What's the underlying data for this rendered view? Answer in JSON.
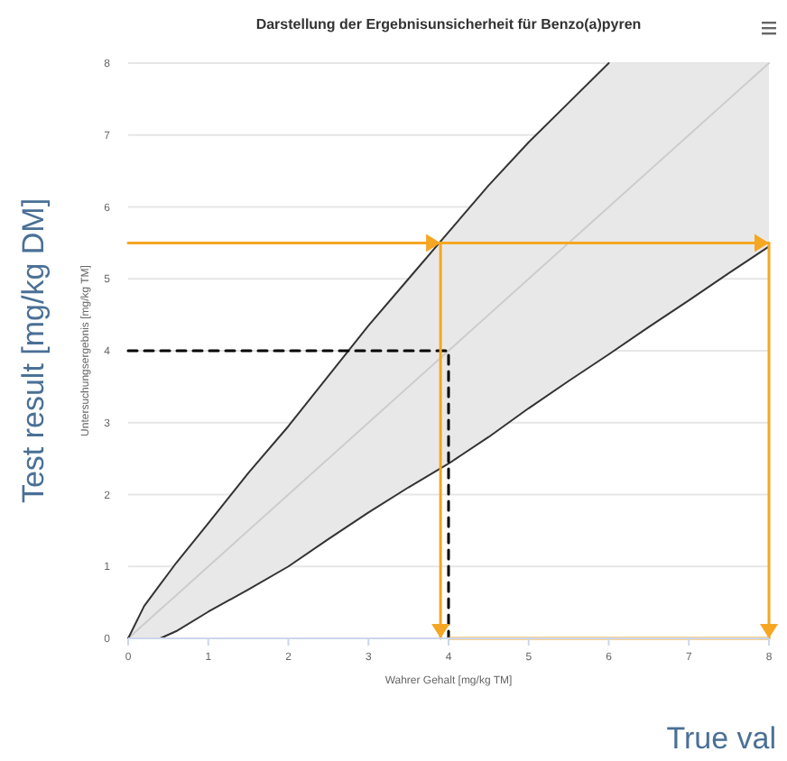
{
  "chart_data": {
    "type": "line",
    "title": "Darstellung der Ergebnisunsicherheit für Benzo(a)pyren",
    "xlabel": "Wahrer Gehalt [mg/kg TM]",
    "ylabel": "Untersuchungsergebnis [mg/kg TM]",
    "annotations": [
      "Test result [mg/kg DM]",
      "True val"
    ],
    "xlim": [
      0,
      8
    ],
    "ylim": [
      0,
      8
    ],
    "xticks": [
      0,
      1,
      2,
      3,
      4,
      5,
      6,
      7,
      8
    ],
    "yticks": [
      0,
      1,
      2,
      3,
      4,
      5,
      6,
      7,
      8
    ],
    "grid": "y",
    "series": [
      {
        "color": "#cccccc",
        "x": [
          0,
          0.2,
          0.4,
          0.5,
          0.6,
          1,
          1.5,
          2,
          2.5,
          3,
          3.5,
          4,
          4.5,
          5,
          5.5,
          6,
          6.5,
          7,
          7.5,
          8
        ],
        "values": [
          0,
          0.2,
          0.4,
          0.5,
          0.6,
          1,
          1.5,
          2,
          2.5,
          3,
          3.5,
          4,
          4.5,
          5,
          5.5,
          6,
          6.5,
          7,
          7.5,
          8
        ],
        "lower": [
          0,
          0,
          0,
          0.05,
          0.1,
          0.37,
          0.68,
          1.0,
          1.38,
          1.75,
          2.1,
          2.43,
          2.8,
          3.2,
          3.58,
          3.95,
          4.33,
          4.7,
          5.08,
          5.45
        ],
        "upper": [
          0,
          0.45,
          0.75,
          0.9,
          1.05,
          1.6,
          2.3,
          2.95,
          3.65,
          4.35,
          5.0,
          5.65,
          6.3,
          6.9,
          7.45,
          8,
          8,
          8,
          8,
          8
        ]
      },
      {
        "color": "#333333",
        "x": [
          0,
          0.2,
          0.4,
          0.5,
          0.6,
          1,
          1.5,
          2,
          2.5,
          3,
          3.5,
          4,
          4.5,
          5,
          5.5,
          6
        ],
        "values": [
          0,
          0.45,
          0.75,
          0.9,
          1.05,
          1.6,
          2.3,
          2.95,
          3.65,
          4.35,
          5.0,
          5.65,
          6.3,
          6.9,
          7.45,
          8
        ]
      },
      {
        "color": "#333333",
        "x": [
          0,
          0.2,
          0.4,
          0.5,
          0.6,
          1,
          1.5,
          2,
          2.5,
          3,
          3.5,
          4,
          4.5,
          5,
          5.5,
          6,
          6.5,
          7,
          7.5,
          8
        ],
        "values": [
          0,
          0,
          0,
          0.05,
          0.1,
          0.37,
          0.68,
          1.0,
          1.38,
          1.75,
          2.1,
          2.43,
          2.8,
          3.2,
          3.58,
          3.95,
          4.33,
          4.7,
          5.08,
          5.45
        ]
      },
      {
        "type": "line",
        "color": "#000000",
        "line_style": "dashed",
        "x": [
          0,
          4,
          4
        ],
        "values": [
          4,
          4,
          0
        ]
      },
      {
        "type": "line",
        "color": "#f5a623",
        "x": [
          0,
          3.9
        ],
        "values": [
          5.5,
          5.5
        ]
      },
      {
        "type": "line",
        "color": "#f5a623",
        "x": [
          3.9,
          8
        ],
        "values": [
          5.5,
          5.5
        ]
      },
      {
        "type": "line",
        "color": "#f5a623",
        "x": [
          3.9,
          3.9
        ],
        "values": [
          5.5,
          0
        ]
      },
      {
        "type": "line",
        "color": "#f5a623",
        "x": [
          8,
          8
        ],
        "values": [
          5.5,
          0
        ]
      },
      {
        "type": "line",
        "color": "#f5a623",
        "x": [
          4,
          8
        ],
        "values": [
          0,
          0
        ]
      }
    ]
  }
}
